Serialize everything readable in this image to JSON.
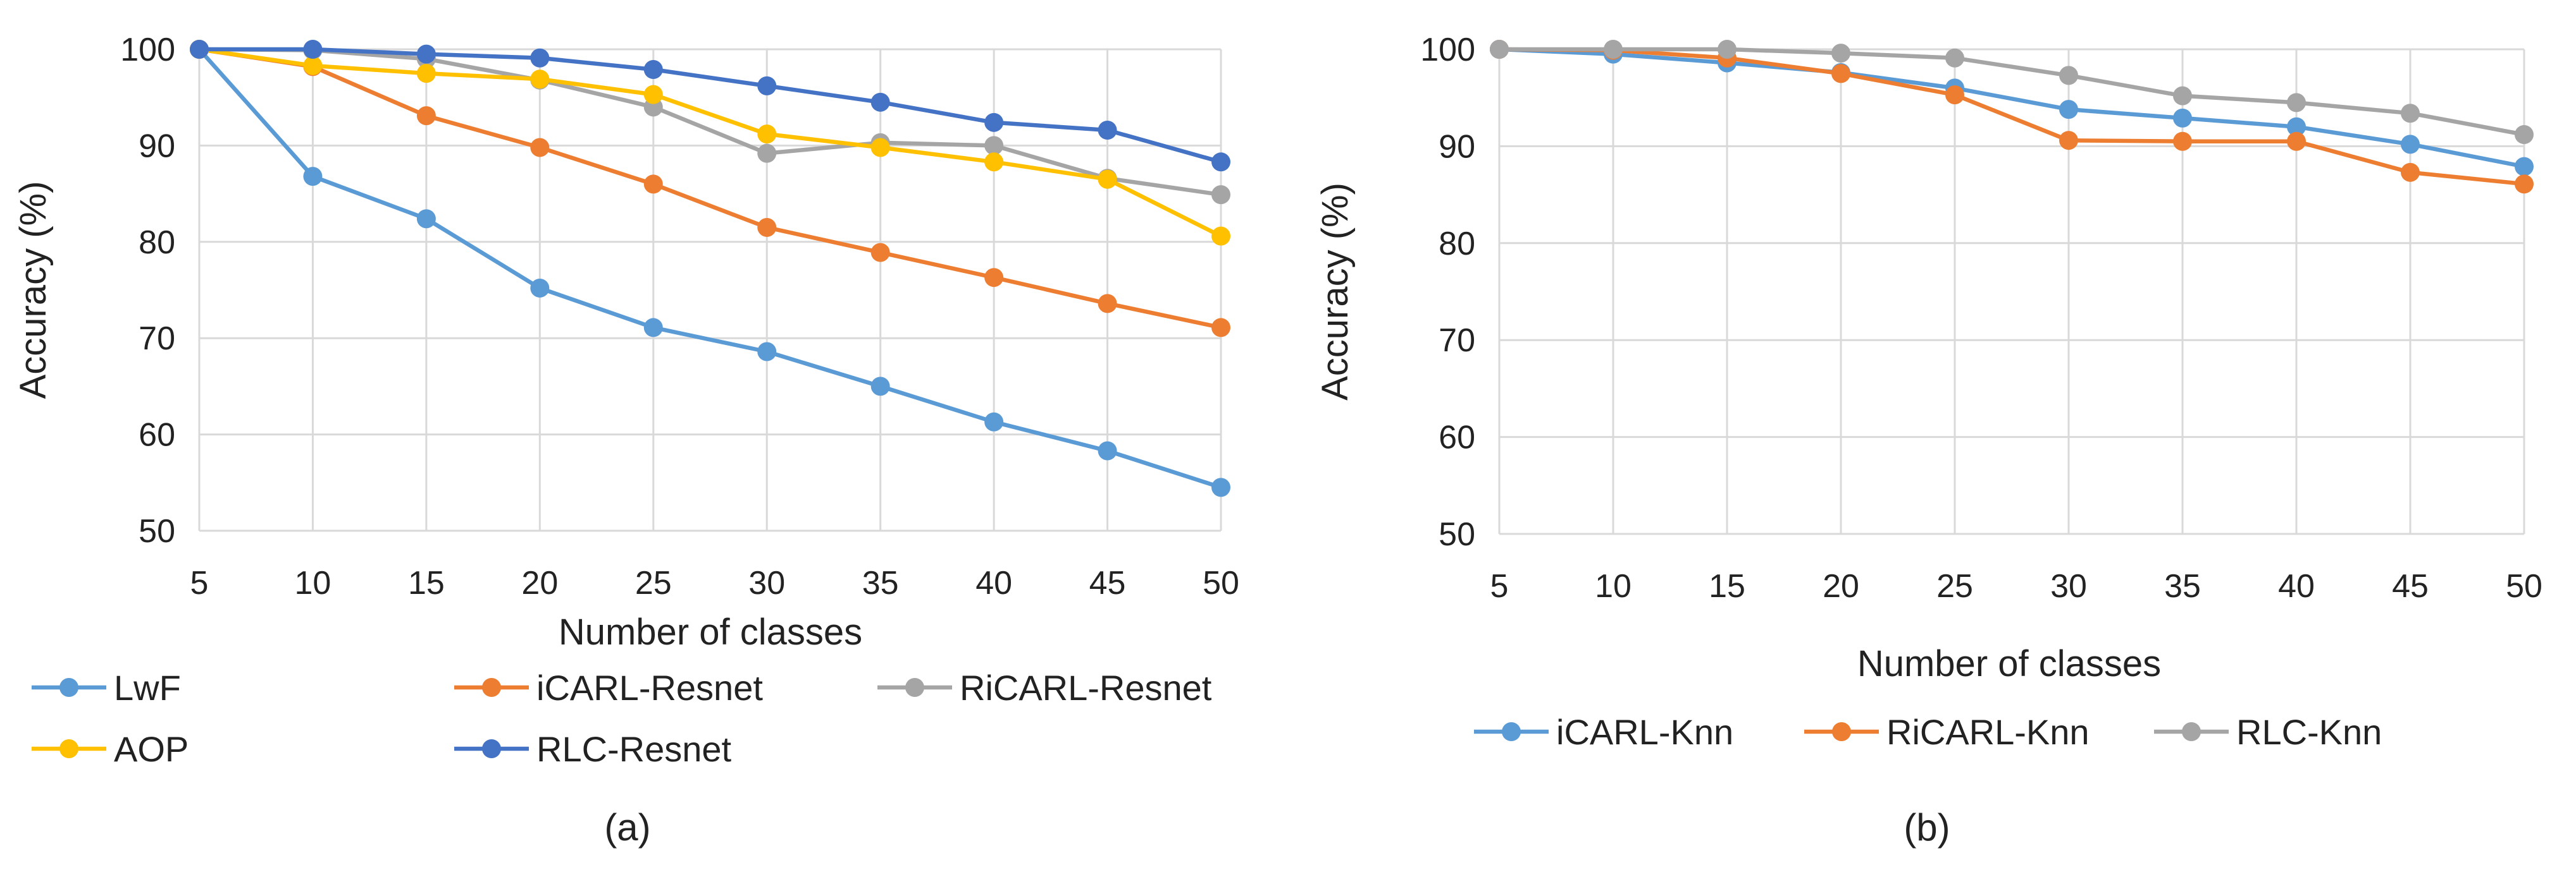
{
  "chart_data": [
    {
      "type": "line",
      "caption": "(a)",
      "xlabel": "Number of classes",
      "ylabel": "Accuracy (%)",
      "x": [
        5,
        10,
        15,
        20,
        25,
        30,
        35,
        40,
        45,
        50
      ],
      "x_tick_labels": [
        "5",
        "10",
        "15",
        "20",
        "25",
        "30",
        "35",
        "40",
        "45",
        "50"
      ],
      "ylim": [
        50,
        100
      ],
      "y_tick_labels": [
        "50",
        "60",
        "70",
        "80",
        "90",
        "100"
      ],
      "grid": "horizontal",
      "legend_position": "bottom",
      "series": [
        {
          "name": "LwF",
          "color": "#5B9BD5",
          "values": [
            100,
            86.8,
            82.4,
            75.2,
            71.1,
            68.6,
            65.0,
            61.3,
            58.3,
            54.5
          ]
        },
        {
          "name": "iCARL-Resnet",
          "color": "#ED7D31",
          "values": [
            100,
            98.2,
            93.1,
            89.8,
            86.0,
            81.5,
            78.9,
            76.3,
            73.6,
            71.1
          ]
        },
        {
          "name": "RiCARL-Resnet",
          "color": "#A5A5A5",
          "values": [
            100,
            99.9,
            99.0,
            96.8,
            94.0,
            89.2,
            90.3,
            90.0,
            86.6,
            84.9
          ]
        },
        {
          "name": "AOP",
          "color": "#FFC000",
          "values": [
            100,
            98.3,
            97.5,
            96.9,
            95.3,
            91.2,
            89.8,
            88.3,
            86.5,
            80.6
          ]
        },
        {
          "name": "RLC-Resnet",
          "color": "#4472C4",
          "values": [
            100,
            100,
            99.5,
            99.1,
            97.9,
            96.2,
            94.5,
            92.4,
            91.6,
            88.3
          ]
        }
      ]
    },
    {
      "type": "line",
      "caption": "(b)",
      "xlabel": "Number of classes",
      "ylabel": "Accuracy (%)",
      "x": [
        5,
        10,
        15,
        20,
        25,
        30,
        35,
        40,
        45,
        50
      ],
      "x_tick_labels": [
        "5",
        "10",
        "15",
        "20",
        "25",
        "30",
        "35",
        "40",
        "45",
        "50"
      ],
      "ylim": [
        50,
        100
      ],
      "y_tick_labels": [
        "50",
        "60",
        "70",
        "80",
        "90",
        "100"
      ],
      "grid": "horizontal",
      "legend_position": "bottom",
      "series": [
        {
          "name": "iCARL-Knn",
          "color": "#5B9BD5",
          "values": [
            100,
            99.5,
            98.6,
            97.6,
            96.0,
            93.8,
            92.9,
            92.0,
            90.2,
            87.9
          ]
        },
        {
          "name": "RiCARL-Knn",
          "color": "#ED7D31",
          "values": [
            100,
            99.9,
            99.1,
            97.5,
            95.3,
            90.6,
            90.5,
            90.5,
            87.3,
            86.1
          ]
        },
        {
          "name": "RLC-Knn",
          "color": "#A5A5A5",
          "values": [
            100,
            100,
            100,
            99.6,
            99.1,
            97.3,
            95.2,
            94.5,
            93.4,
            91.2
          ]
        }
      ]
    }
  ]
}
